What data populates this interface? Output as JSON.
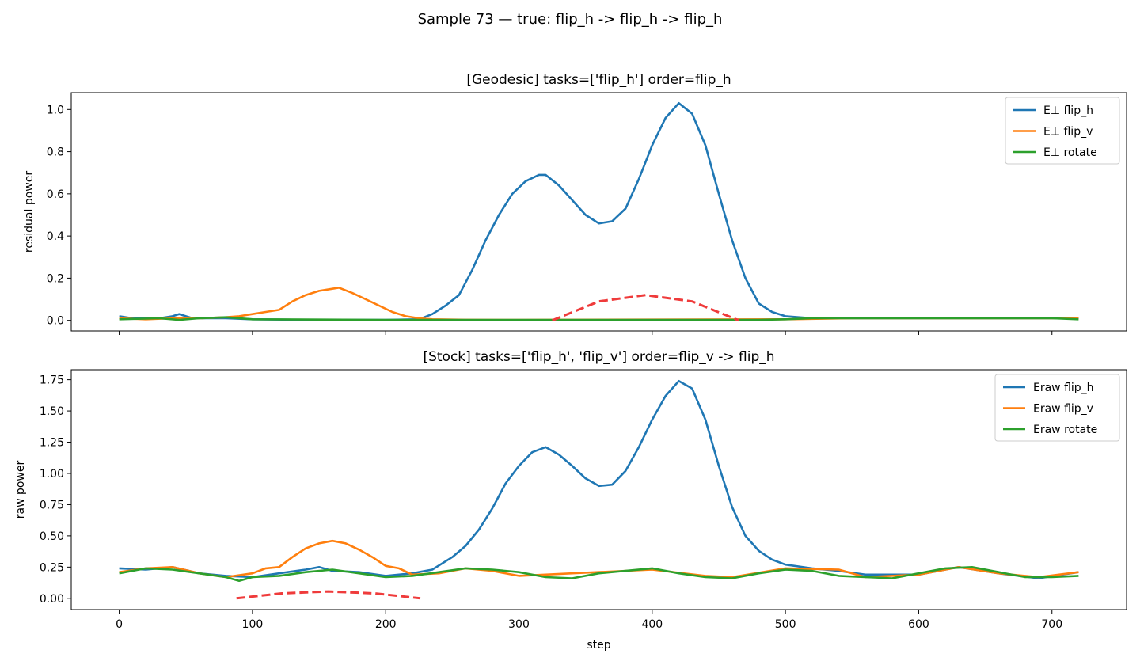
{
  "suptitle": "Sample 73 — true: flip_h -> flip_h -> flip_h",
  "colors": {
    "blue": "#1f77b4",
    "orange": "#ff7f0e",
    "green": "#2ca02c",
    "red_dashed": "#ef3b3b"
  },
  "chart_data": [
    {
      "type": "line",
      "title": "[Geodesic] tasks=['flip_h'] order=flip_h",
      "xlabel": "",
      "ylabel": "residual power",
      "xlim": [
        -36,
        756
      ],
      "ylim": [
        -0.05,
        1.08
      ],
      "xticks": [
        0,
        100,
        200,
        300,
        400,
        500,
        600,
        700
      ],
      "yticks": [
        0.0,
        0.2,
        0.4,
        0.6,
        0.8,
        1.0
      ],
      "ytick_labels": [
        "0.0",
        "0.2",
        "0.4",
        "0.6",
        "0.8",
        "1.0"
      ],
      "show_xtick_labels": false,
      "legend_position": "top-right",
      "series": [
        {
          "name": "E⊥ flip_h",
          "color": "#1f77b4",
          "x": [
            0,
            10,
            20,
            30,
            40,
            45,
            55,
            80,
            100,
            150,
            200,
            225,
            235,
            245,
            255,
            265,
            275,
            285,
            295,
            305,
            315,
            320,
            330,
            340,
            350,
            360,
            370,
            380,
            390,
            400,
            410,
            420,
            430,
            440,
            450,
            460,
            470,
            480,
            490,
            500,
            520,
            560,
            600,
            650,
            700,
            720
          ],
          "y": [
            0.02,
            0.01,
            0.01,
            0.01,
            0.02,
            0.03,
            0.01,
            0.01,
            0.005,
            0.002,
            0.002,
            0.005,
            0.03,
            0.07,
            0.12,
            0.24,
            0.38,
            0.5,
            0.6,
            0.66,
            0.69,
            0.69,
            0.64,
            0.57,
            0.5,
            0.46,
            0.47,
            0.53,
            0.67,
            0.83,
            0.96,
            1.03,
            0.98,
            0.83,
            0.6,
            0.38,
            0.2,
            0.08,
            0.04,
            0.02,
            0.01,
            0.01,
            0.01,
            0.01,
            0.01,
            0.01
          ]
        },
        {
          "name": "E⊥ flip_v",
          "color": "#ff7f0e",
          "x": [
            0,
            20,
            40,
            60,
            80,
            90,
            100,
            110,
            120,
            130,
            140,
            150,
            160,
            165,
            175,
            185,
            195,
            205,
            215,
            225,
            235,
            260,
            300,
            500,
            550,
            600,
            650,
            700,
            720
          ],
          "y": [
            0.01,
            0.005,
            0.01,
            0.01,
            0.015,
            0.02,
            0.03,
            0.04,
            0.05,
            0.09,
            0.12,
            0.14,
            0.15,
            0.155,
            0.13,
            0.1,
            0.07,
            0.04,
            0.02,
            0.01,
            0.005,
            0.003,
            0.002,
            0.005,
            0.01,
            0.01,
            0.01,
            0.01,
            0.01
          ]
        },
        {
          "name": "E⊥ rotate",
          "color": "#2ca02c",
          "x": [
            0,
            30,
            45,
            60,
            80,
            100,
            200,
            300,
            480,
            500,
            520,
            540,
            560,
            600,
            650,
            700,
            720
          ],
          "y": [
            0.005,
            0.01,
            0.002,
            0.01,
            0.015,
            0.005,
            0.002,
            0.002,
            0.002,
            0.005,
            0.01,
            0.01,
            0.01,
            0.01,
            0.01,
            0.01,
            0.005
          ]
        }
      ],
      "annotation_dashed_arc": {
        "x": [
          325,
          360,
          395,
          430,
          465
        ],
        "y": [
          0.0,
          0.09,
          0.12,
          0.09,
          0.0
        ]
      }
    },
    {
      "type": "line",
      "title": "[Stock] tasks=['flip_h', 'flip_v'] order=flip_v -> flip_h",
      "xlabel": "step",
      "ylabel": "raw power",
      "xlim": [
        -36,
        756
      ],
      "ylim": [
        -0.09,
        1.83
      ],
      "xticks": [
        0,
        100,
        200,
        300,
        400,
        500,
        600,
        700
      ],
      "xtick_labels": [
        "0",
        "100",
        "200",
        "300",
        "400",
        "500",
        "600",
        "700"
      ],
      "yticks": [
        0.0,
        0.25,
        0.5,
        0.75,
        1.0,
        1.25,
        1.5,
        1.75
      ],
      "ytick_labels": [
        "0.00",
        "0.25",
        "0.50",
        "0.75",
        "1.00",
        "1.25",
        "1.50",
        "1.75"
      ],
      "show_xtick_labels": true,
      "legend_position": "top-right",
      "series": [
        {
          "name": "Eraw flip_h",
          "color": "#1f77b4",
          "x": [
            0,
            20,
            40,
            60,
            80,
            100,
            120,
            140,
            150,
            160,
            180,
            200,
            220,
            235,
            250,
            260,
            270,
            280,
            290,
            300,
            310,
            320,
            330,
            340,
            350,
            360,
            370,
            380,
            390,
            400,
            410,
            420,
            430,
            440,
            450,
            460,
            470,
            480,
            490,
            500,
            520,
            540,
            560,
            600,
            630,
            660,
            690,
            720
          ],
          "y": [
            0.24,
            0.23,
            0.25,
            0.2,
            0.18,
            0.17,
            0.2,
            0.23,
            0.25,
            0.22,
            0.21,
            0.18,
            0.2,
            0.23,
            0.33,
            0.42,
            0.55,
            0.72,
            0.92,
            1.06,
            1.17,
            1.21,
            1.15,
            1.06,
            0.96,
            0.9,
            0.91,
            1.02,
            1.21,
            1.43,
            1.62,
            1.74,
            1.68,
            1.43,
            1.06,
            0.73,
            0.5,
            0.38,
            0.31,
            0.27,
            0.24,
            0.22,
            0.19,
            0.19,
            0.25,
            0.2,
            0.16,
            0.21
          ]
        },
        {
          "name": "Eraw flip_v",
          "color": "#ff7f0e",
          "x": [
            0,
            20,
            40,
            60,
            80,
            100,
            110,
            120,
            130,
            140,
            150,
            160,
            170,
            180,
            190,
            200,
            210,
            220,
            240,
            260,
            280,
            300,
            340,
            400,
            440,
            460,
            500,
            540,
            560,
            600,
            630,
            660,
            690,
            720
          ],
          "y": [
            0.21,
            0.24,
            0.25,
            0.2,
            0.17,
            0.2,
            0.24,
            0.25,
            0.33,
            0.4,
            0.44,
            0.46,
            0.44,
            0.39,
            0.33,
            0.26,
            0.24,
            0.19,
            0.2,
            0.24,
            0.22,
            0.18,
            0.2,
            0.23,
            0.18,
            0.17,
            0.24,
            0.23,
            0.17,
            0.19,
            0.25,
            0.2,
            0.17,
            0.21
          ]
        },
        {
          "name": "Eraw rotate",
          "color": "#2ca02c",
          "x": [
            0,
            20,
            40,
            60,
            80,
            90,
            100,
            120,
            140,
            160,
            180,
            200,
            220,
            240,
            260,
            280,
            300,
            320,
            340,
            360,
            380,
            400,
            420,
            440,
            460,
            480,
            500,
            520,
            540,
            560,
            580,
            600,
            620,
            640,
            660,
            680,
            700,
            720
          ],
          "y": [
            0.2,
            0.24,
            0.23,
            0.2,
            0.17,
            0.14,
            0.17,
            0.18,
            0.21,
            0.23,
            0.2,
            0.17,
            0.18,
            0.21,
            0.24,
            0.23,
            0.21,
            0.17,
            0.16,
            0.2,
            0.22,
            0.24,
            0.2,
            0.17,
            0.16,
            0.2,
            0.23,
            0.22,
            0.18,
            0.17,
            0.16,
            0.2,
            0.24,
            0.25,
            0.21,
            0.17,
            0.17,
            0.18
          ]
        }
      ],
      "annotation_dashed_arc": {
        "x": [
          88,
          122,
          157,
          192,
          226
        ],
        "y": [
          0.0,
          0.04,
          0.055,
          0.04,
          0.0
        ]
      }
    }
  ]
}
